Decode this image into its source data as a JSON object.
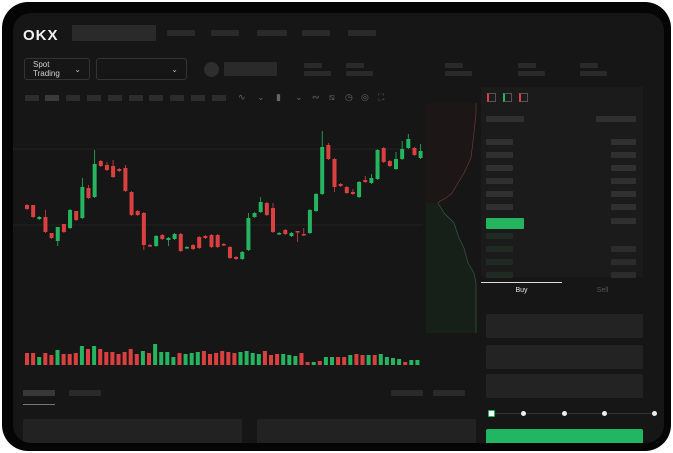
{
  "header": {
    "logo": "OKX"
  },
  "toolbar": {
    "market_type": "Spot Trading"
  },
  "order_form": {
    "tabs": [
      "Buy",
      "Sell"
    ],
    "active_tab": "Buy",
    "leverage_slider_value": 0
  },
  "colors": {
    "up": "#25b45f",
    "down": "#d9403f",
    "background": "#161616",
    "accent": "#22b562"
  },
  "icons": [
    "chevron-down-icon",
    "indicator-icon",
    "line-tool-icon",
    "ruler-icon",
    "camera-icon",
    "settings-icon",
    "fullscreen-icon",
    "orderbook-both-icon",
    "orderbook-bids-icon",
    "orderbook-asks-icon"
  ],
  "chart_data": {
    "type": "candlestick",
    "title": "",
    "xlabel": "",
    "ylabel": "",
    "note_axes": "none printed",
    "candles": [
      [
        67,
        63,
        68,
        62
      ],
      [
        67,
        55,
        67,
        54
      ],
      [
        53,
        55,
        56,
        52
      ],
      [
        55,
        40,
        62,
        39
      ],
      [
        39,
        34,
        39,
        33
      ],
      [
        31,
        45,
        31,
        26
      ],
      [
        48,
        40,
        48,
        39
      ],
      [
        44,
        62,
        63,
        43
      ],
      [
        61,
        52,
        61,
        51
      ],
      [
        54,
        85,
        94,
        53
      ],
      [
        84,
        74,
        87,
        73
      ],
      [
        75,
        108,
        122,
        74
      ],
      [
        111,
        106,
        112,
        105
      ],
      [
        107,
        102,
        110,
        101
      ],
      [
        106,
        95,
        112,
        94
      ],
      [
        103,
        101,
        104,
        100
      ],
      [
        104,
        81,
        107,
        80
      ],
      [
        80,
        57,
        81,
        56
      ],
      [
        61,
        57,
        62,
        56
      ],
      [
        59,
        27,
        60,
        22
      ],
      [
        27,
        26,
        28,
        25
      ],
      [
        26,
        36,
        37,
        25
      ],
      [
        37,
        33,
        38,
        32
      ],
      [
        32,
        34,
        35,
        26
      ],
      [
        33,
        38,
        39,
        32
      ],
      [
        38,
        21,
        39,
        20
      ],
      [
        24,
        25,
        26,
        23
      ],
      [
        27,
        23,
        28,
        22
      ],
      [
        35,
        24,
        36,
        23
      ],
      [
        36,
        34,
        37,
        33
      ],
      [
        37,
        25,
        38,
        24
      ],
      [
        37,
        25,
        38,
        24
      ],
      [
        28,
        27,
        29,
        26
      ],
      [
        25,
        14,
        26,
        13
      ],
      [
        15,
        13,
        16,
        12
      ],
      [
        13,
        20,
        21,
        12
      ],
      [
        22,
        54,
        59,
        21
      ],
      [
        55,
        59,
        60,
        54
      ],
      [
        60,
        70,
        75,
        59
      ],
      [
        69,
        57,
        70,
        56
      ],
      [
        64,
        40,
        69,
        39
      ],
      [
        38,
        39,
        40,
        37
      ],
      [
        42,
        38,
        43,
        37
      ],
      [
        36,
        39,
        40,
        35
      ],
      [
        41,
        40,
        41,
        30
      ],
      [
        38,
        37,
        44,
        36
      ],
      [
        39,
        62,
        63,
        38
      ],
      [
        61,
        78,
        79,
        60
      ],
      [
        78,
        125,
        141,
        77
      ],
      [
        127,
        113,
        129,
        112
      ],
      [
        113,
        85,
        114,
        80
      ],
      [
        88,
        86,
        89,
        85
      ],
      [
        85,
        79,
        86,
        78
      ],
      [
        80,
        78,
        83,
        77
      ],
      [
        75,
        90,
        91,
        74
      ],
      [
        92,
        90,
        96,
        89
      ],
      [
        89,
        94,
        98,
        88
      ],
      [
        93,
        122,
        123,
        92
      ],
      [
        124,
        110,
        125,
        109
      ],
      [
        111,
        106,
        112,
        105
      ],
      [
        103,
        113,
        120,
        102
      ],
      [
        113,
        123,
        131,
        112
      ],
      [
        124,
        133,
        138,
        123
      ],
      [
        124,
        117,
        125,
        116
      ],
      [
        114,
        121,
        128,
        113
      ]
    ],
    "volume": [
      12,
      12,
      8,
      12,
      10,
      15,
      11,
      11,
      12,
      19,
      16,
      19,
      16,
      13,
      13,
      11,
      13,
      16,
      11,
      14,
      12,
      21,
      13,
      13,
      8,
      12,
      11,
      12,
      13,
      14,
      11,
      12,
      14,
      13,
      12,
      13,
      14,
      12,
      11,
      14,
      10,
      11,
      11,
      10,
      9,
      12,
      3,
      3,
      4,
      8,
      8,
      8,
      8,
      10,
      11,
      10,
      10,
      10,
      11,
      8,
      7,
      6,
      3,
      5,
      5
    ],
    "volume_up": [
      0,
      0,
      1,
      0,
      0,
      1,
      0,
      0,
      0,
      1,
      0,
      1,
      0,
      0,
      0,
      0,
      0,
      0,
      0,
      1,
      0,
      1,
      1,
      1,
      1,
      0,
      1,
      1,
      1,
      0,
      0,
      0,
      0,
      0,
      0,
      1,
      1,
      1,
      1,
      0,
      0,
      0,
      1,
      1,
      1,
      0,
      0,
      1,
      0,
      1,
      1,
      0,
      0,
      1,
      0,
      0,
      1,
      0,
      1,
      1,
      1,
      1,
      0,
      1,
      1
    ]
  }
}
